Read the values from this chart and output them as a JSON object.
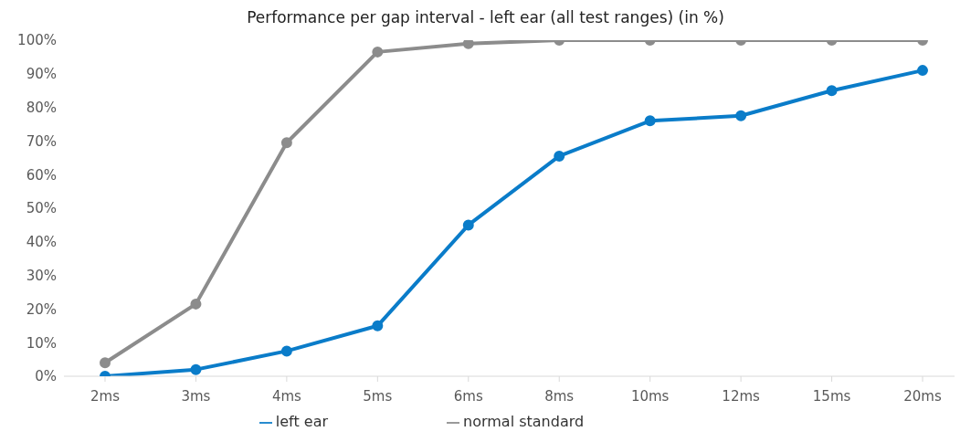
{
  "chart_data": {
    "type": "line",
    "title": "Performance per gap interval - left ear (all test ranges) (in %)",
    "categories": [
      "2ms",
      "3ms",
      "4ms",
      "5ms",
      "6ms",
      "8ms",
      "10ms",
      "12ms",
      "15ms",
      "20ms"
    ],
    "series": [
      {
        "name": "left ear",
        "color": "#0a7cc9",
        "values": [
          0,
          2,
          7.5,
          15,
          45,
          65.5,
          76,
          77.5,
          85,
          91
        ]
      },
      {
        "name": "normal standard",
        "color": "#8c8c8c",
        "values": [
          4,
          21.5,
          69.5,
          96.5,
          99,
          100,
          100,
          100,
          100,
          100
        ]
      }
    ],
    "ylim": [
      0,
      100
    ],
    "yticks": [
      {
        "value": 0,
        "label": "0%"
      },
      {
        "value": 10,
        "label": "10%"
      },
      {
        "value": 20,
        "label": "20%"
      },
      {
        "value": 30,
        "label": "30%"
      },
      {
        "value": 40,
        "label": "40%"
      },
      {
        "value": 50,
        "label": "50%"
      },
      {
        "value": 60,
        "label": "60%"
      },
      {
        "value": 70,
        "label": "70%"
      },
      {
        "value": 80,
        "label": "80%"
      },
      {
        "value": 90,
        "label": "90%"
      },
      {
        "value": 100,
        "label": "100%"
      }
    ],
    "grid": false,
    "legend": "bottom",
    "marker": "circle",
    "line_style": "solid"
  }
}
